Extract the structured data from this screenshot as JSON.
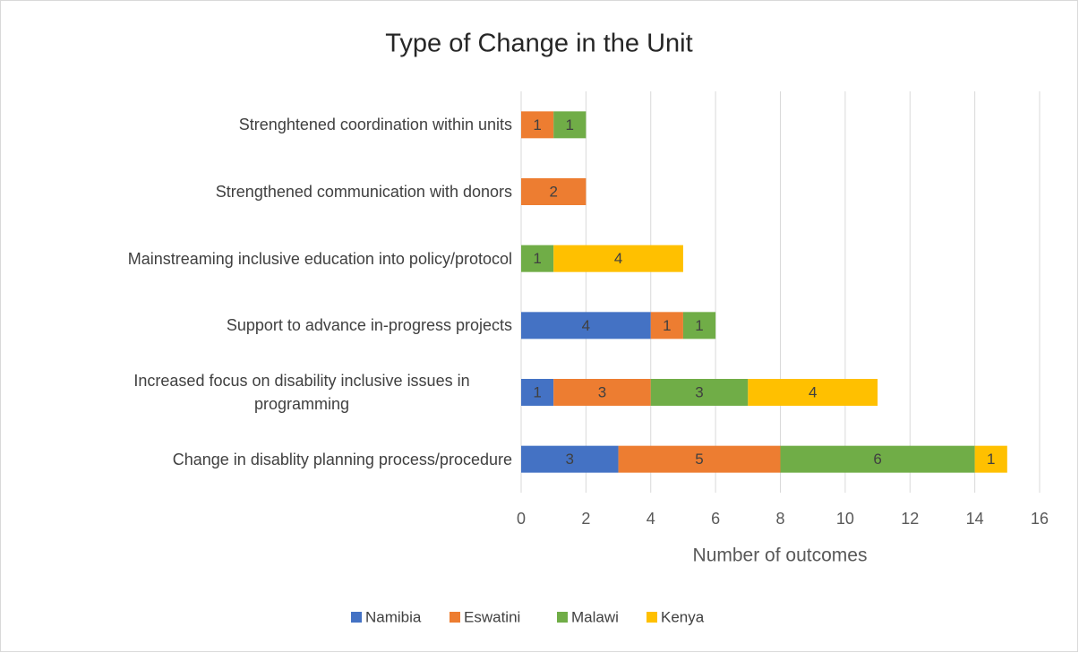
{
  "chart_data": {
    "type": "stacked-barh",
    "title": "Type of Change in the Unit",
    "x_label": "Number of outcomes",
    "categories": [
      "Strenghtened coordination within units",
      "Strengthened communication with donors",
      "Mainstreaming inclusive education into policy/protocol",
      "Support to advance in-progress projects",
      "Increased focus on disability inclusive issues in programming",
      "Change in disablity planning process/procedure"
    ],
    "series": [
      {
        "name": "Namibia",
        "color": "#4472c4",
        "values": [
          null,
          null,
          null,
          4,
          1,
          3
        ]
      },
      {
        "name": "Eswatini",
        "color": "#ed7d31",
        "values": [
          1,
          2,
          null,
          1,
          3,
          5
        ]
      },
      {
        "name": "Malawi",
        "color": "#70ad47",
        "values": [
          1,
          null,
          1,
          1,
          3,
          6
        ]
      },
      {
        "name": "Kenya",
        "color": "#ffc000",
        "values": [
          null,
          null,
          4,
          null,
          4,
          1
        ]
      }
    ],
    "xlim": [
      0,
      16
    ],
    "xticks": [
      0,
      2,
      4,
      6,
      8,
      10,
      12,
      14,
      16
    ],
    "grid": true,
    "legend": "bottom"
  }
}
